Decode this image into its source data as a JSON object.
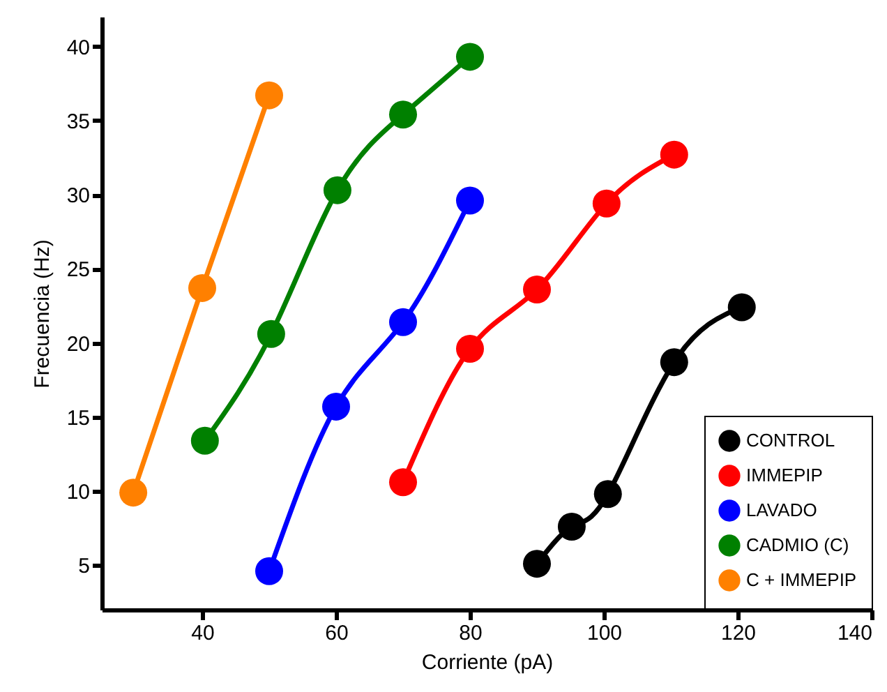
{
  "chart_data": {
    "type": "line",
    "xlabel": "Corriente (pA)",
    "ylabel": "Frecuencia (Hz)",
    "xlim": [
      25,
      140
    ],
    "xticks": [
      40,
      60,
      80,
      100,
      120,
      140
    ],
    "ylim": [
      2,
      42
    ],
    "yticks": [
      5,
      10,
      15,
      20,
      25,
      30,
      35,
      40
    ],
    "grid": false,
    "legend": "bottom right",
    "marker": "circle",
    "line_style": "solid",
    "series": [
      {
        "name": "CONTROL",
        "color": "#000000",
        "x": [
          90,
          95.2,
          100.6,
          110.5,
          120.6
        ],
        "values": [
          5.1,
          7.6,
          9.8,
          18.7,
          22.4
        ]
      },
      {
        "name": "IMMEPIP",
        "color": "#ff0000",
        "x": [
          70,
          80,
          90,
          100.4,
          110.5
        ],
        "values": [
          10.6,
          19.6,
          23.6,
          29.4,
          32.7
        ]
      },
      {
        "name": "LAVADO",
        "color": "#0000ff",
        "x": [
          50,
          60,
          70,
          80
        ],
        "values": [
          4.6,
          15.7,
          21.4,
          29.6
        ]
      },
      {
        "name": "CADMIO (C)",
        "color": "#008000",
        "x": [
          40.4,
          50.3,
          60.2,
          70,
          80
        ],
        "values": [
          13.4,
          20.6,
          30.3,
          35.4,
          39.3
        ]
      },
      {
        "name": "C + IMMEPIP",
        "color": "#ff8000",
        "x": [
          29.7,
          40,
          50
        ],
        "values": [
          9.9,
          23.7,
          36.7
        ]
      }
    ]
  }
}
